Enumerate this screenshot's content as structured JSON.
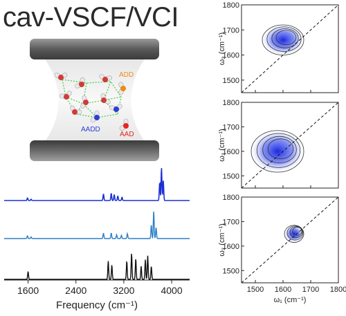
{
  "title": "cav-VSCF/VCI",
  "illustration": {
    "labels": [
      {
        "key": "add",
        "text": "ADD",
        "color": "#ee8a17"
      },
      {
        "key": "aadd",
        "text": "AADD",
        "color": "#2b3dd6"
      },
      {
        "key": "aad",
        "text": "AAD",
        "color": "#e52420"
      }
    ]
  },
  "chart_data": [
    {
      "type": "line",
      "title": "",
      "xlabel": "Frequency (cm⁻¹)",
      "ylabel": "",
      "xlim": [
        1200,
        4300
      ],
      "xticks": [
        "1600",
        "2400",
        "3200",
        "4000"
      ],
      "series": [
        {
          "color": "#1b2fd3",
          "peaks": [
            [
              1590,
              0.08
            ],
            [
              1650,
              0.04
            ],
            [
              2860,
              0.2
            ],
            [
              2990,
              0.22
            ],
            [
              3040,
              0.18
            ],
            [
              3100,
              0.14
            ],
            [
              3170,
              0.1
            ],
            [
              3800,
              0.55
            ],
            [
              3830,
              1.0
            ],
            [
              3860,
              0.6
            ]
          ]
        },
        {
          "color": "#2b7fc7",
          "peaks": [
            [
              1590,
              0.1
            ],
            [
              1650,
              0.06
            ],
            [
              2860,
              0.2
            ],
            [
              2990,
              0.2
            ],
            [
              3080,
              0.14
            ],
            [
              3160,
              0.12
            ],
            [
              3260,
              0.18
            ],
            [
              3660,
              0.5
            ],
            [
              3700,
              1.0
            ],
            [
              3740,
              0.4
            ]
          ]
        },
        {
          "color": "#111111",
          "peaks": [
            [
              1600,
              0.3
            ],
            [
              2940,
              0.7
            ],
            [
              3000,
              0.55
            ],
            [
              3250,
              0.7
            ],
            [
              3330,
              1.0
            ],
            [
              3400,
              0.8
            ],
            [
              3490,
              0.5
            ],
            [
              3560,
              0.75
            ],
            [
              3600,
              0.9
            ],
            [
              3660,
              0.5
            ]
          ]
        }
      ]
    },
    {
      "type": "heatmap",
      "xlabel": "ω₁ (cm⁻¹)",
      "ylabel": "ω₂ (cm⁻¹)",
      "xlim": [
        1450,
        1800
      ],
      "ylim": [
        1450,
        1800
      ],
      "xticks": [
        "1500",
        "1600",
        "1700",
        "1800"
      ],
      "yticks": [
        "1500",
        "1600",
        "1700",
        "1800"
      ],
      "diagonal": true,
      "panels": [
        {
          "center": [
            1600,
            1660
          ],
          "spread": [
            75,
            60
          ]
        },
        {
          "center": [
            1580,
            1600
          ],
          "spread": [
            95,
            85
          ]
        },
        {
          "center": [
            1640,
            1650
          ],
          "spread": [
            35,
            35
          ]
        }
      ]
    }
  ]
}
